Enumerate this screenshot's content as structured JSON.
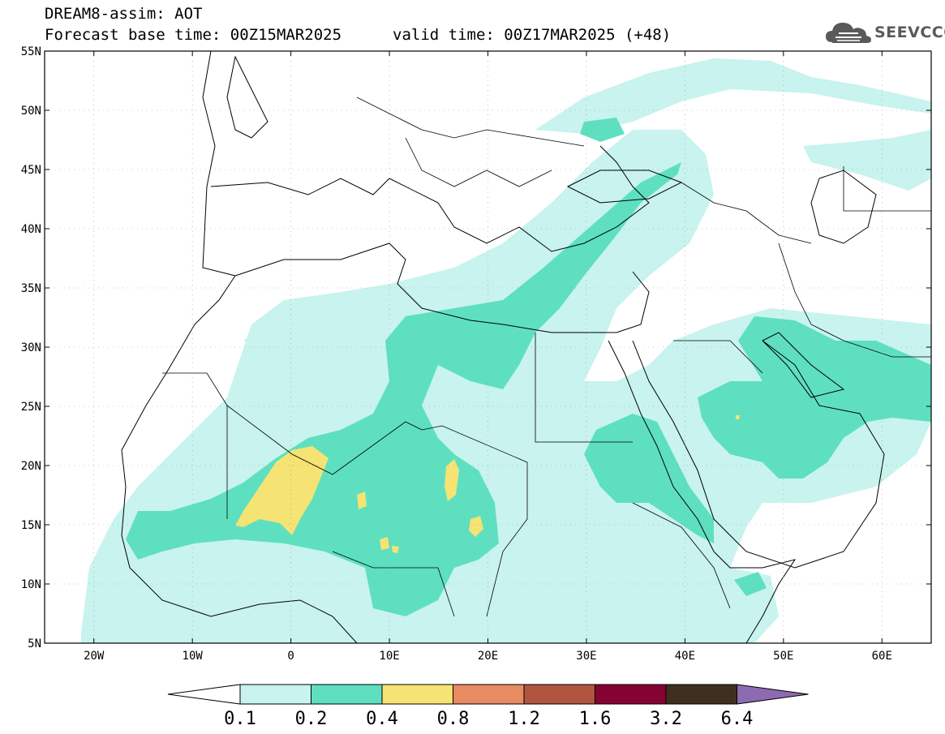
{
  "header": {
    "model_field": "DREAM8-assim: AOT",
    "base_time": "Forecast base time: 00Z15MAR2025",
    "valid_time": "valid time: 00Z17MAR2025 (+48)",
    "logo_text": "SEEVCCC"
  },
  "map": {
    "lon_range": [
      -25,
      65
    ],
    "lat_range": [
      5,
      55
    ],
    "lat_labels": [
      "5N",
      "10N",
      "15N",
      "20N",
      "25N",
      "30N",
      "35N",
      "40N",
      "45N",
      "50N",
      "55N"
    ],
    "lat_values": [
      5,
      10,
      15,
      20,
      25,
      30,
      35,
      40,
      45,
      50,
      55
    ],
    "lon_labels": [
      "20W",
      "10W",
      "0",
      "10E",
      "20E",
      "30E",
      "40E",
      "50E",
      "60E"
    ],
    "lon_values": [
      -20,
      -10,
      0,
      10,
      20,
      30,
      40,
      50,
      60
    ]
  },
  "colorbar": {
    "labels": [
      "0.1",
      "0.2",
      "0.4",
      "0.8",
      "1.2",
      "1.6",
      "3.2",
      "6.4"
    ],
    "colors": [
      "#c8f3ee",
      "#5ee0c0",
      "#f5e373",
      "#e88a62",
      "#b15540",
      "#850333",
      "#3f2f1f",
      "#8c6bb1"
    ],
    "under_color": "#ffffff"
  },
  "colors": {
    "level1": "#c8f3ee",
    "level2": "#5ee0c0",
    "level3": "#f5e373",
    "border": "#000000"
  }
}
